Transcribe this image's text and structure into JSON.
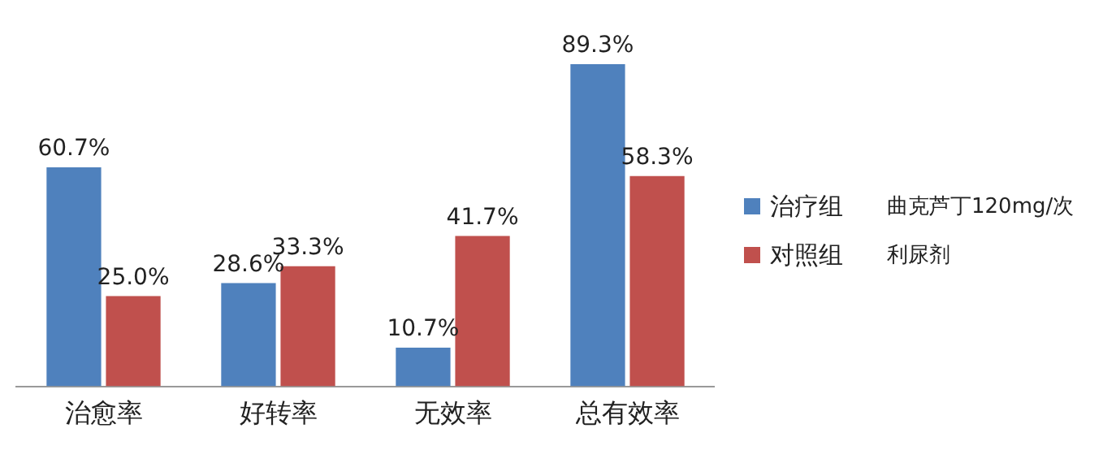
{
  "chart_data": {
    "type": "bar",
    "categories": [
      "治愈率",
      "好转率",
      "无效率",
      "总有效率"
    ],
    "series": [
      {
        "name": "治疗组",
        "color": "#4f81bd",
        "values": [
          60.7,
          28.6,
          10.7,
          89.3
        ],
        "value_labels": [
          "60.7%",
          "28.6%",
          "10.7%",
          "89.3%"
        ]
      },
      {
        "name": "对照组",
        "color": "#c0504d",
        "values": [
          25.0,
          33.3,
          41.7,
          58.3
        ],
        "value_labels": [
          "25.0%",
          "33.3%",
          "41.7%",
          "58.3%"
        ]
      }
    ],
    "annotations": [
      "曲克芦丁120mg/次",
      "利尿剂"
    ],
    "legend": "right",
    "grid": false
  }
}
